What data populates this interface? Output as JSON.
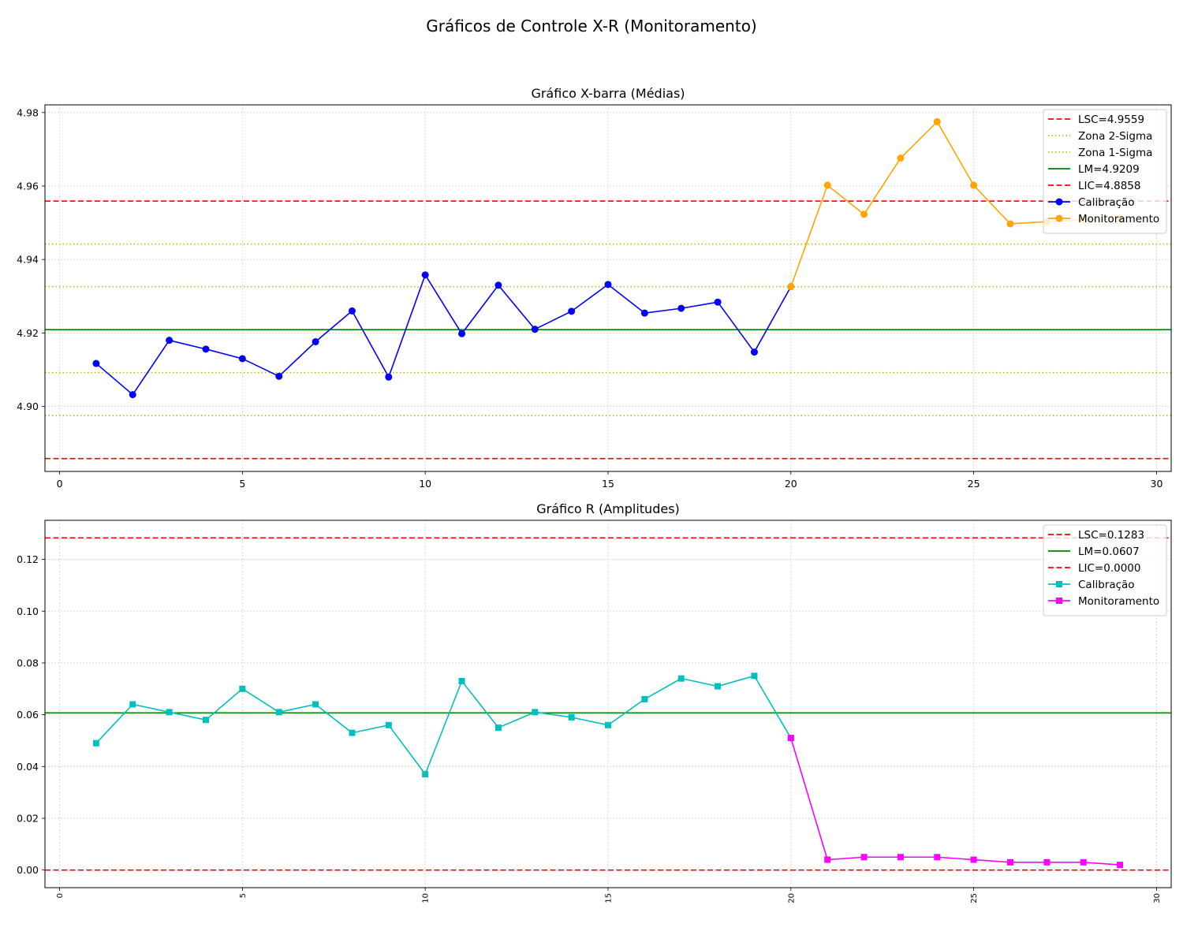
{
  "figure": {
    "suptitle": "Gráficos de Controle X-R (Monitoramento)"
  },
  "chart_data": [
    {
      "type": "line",
      "title": "Gráfico X-barra (Médias)",
      "xlabel": "",
      "ylabel": "",
      "xlim": [
        -0.4,
        30.4
      ],
      "ylim": [
        4.8823,
        4.9821
      ],
      "xticks": [
        0,
        5,
        10,
        15,
        20,
        25,
        30
      ],
      "yticks": [
        4.9,
        4.92,
        4.94,
        4.96,
        4.98
      ],
      "ytick_labels": [
        "4.90",
        "4.92",
        "4.94",
        "4.96",
        "4.98"
      ],
      "grid": true,
      "legend_position": "top-right",
      "control_lines": [
        {
          "label": "LSC=4.9559",
          "value": 4.9559,
          "color": "#ff0000",
          "style": "dashed"
        },
        {
          "label": "Zona 2-Sigma",
          "value": 4.9442,
          "color": "#bfbf00",
          "style": "dotted"
        },
        {
          "label": "Zona 1-Sigma",
          "value": 4.9326,
          "color": "#bfbf00",
          "style": "dotted"
        },
        {
          "label": "LM=4.9209",
          "value": 4.9209,
          "color": "#008000",
          "style": "solid"
        },
        {
          "label": "LIC=4.8858",
          "value": 4.8858,
          "color": "#ff0000",
          "style": "dashed"
        }
      ],
      "unlabeled_lines": [
        {
          "value": 4.9092,
          "color": "#bfbf00",
          "style": "dotted"
        },
        {
          "value": 4.8975,
          "color": "#bfbf00",
          "style": "dotted"
        }
      ],
      "series": [
        {
          "name": "Calibração",
          "color": "#0000ff",
          "marker": "circle",
          "x": [
            1,
            2,
            3,
            4,
            5,
            6,
            7,
            8,
            9,
            10,
            11,
            12,
            13,
            14,
            15,
            16,
            17,
            18,
            19,
            20
          ],
          "y": [
            4.9117,
            4.9032,
            4.918,
            4.9156,
            4.913,
            4.9082,
            4.9176,
            4.926,
            4.908,
            4.9358,
            4.9198,
            4.933,
            4.921,
            4.9259,
            4.9332,
            4.9254,
            4.9267,
            4.9284,
            4.9148,
            4.9326
          ]
        },
        {
          "name": "Monitoramento",
          "color": "#ffa500",
          "marker": "circle",
          "x": [
            20,
            21,
            22,
            23,
            24,
            25,
            26,
            27,
            28,
            29
          ],
          "y": [
            4.9326,
            4.9602,
            4.9523,
            4.9676,
            4.9775,
            4.9602,
            4.9497,
            4.9503,
            4.9508,
            4.9512
          ]
        }
      ]
    },
    {
      "type": "line",
      "title": "Gráfico R (Amplitudes)",
      "xlabel": "",
      "ylabel": "",
      "xlim": [
        -0.4,
        30.4
      ],
      "ylim": [
        -0.0068,
        0.1351
      ],
      "xticks": [
        0,
        5,
        10,
        15,
        20,
        25,
        30
      ],
      "yticks": [
        0.0,
        0.02,
        0.04,
        0.06,
        0.08,
        0.1,
        0.12
      ],
      "ytick_labels": [
        "0.00",
        "0.02",
        "0.04",
        "0.06",
        "0.08",
        "0.10",
        "0.12"
      ],
      "xtick_rotation": 90,
      "grid": true,
      "legend_position": "top-right",
      "control_lines": [
        {
          "label": "LSC=0.1283",
          "value": 0.1283,
          "color": "#ff0000",
          "style": "dashed"
        },
        {
          "label": "LM=0.0607",
          "value": 0.0607,
          "color": "#008000",
          "style": "solid"
        },
        {
          "label": "LIC=0.0000",
          "value": 0.0,
          "color": "#ff0000",
          "style": "dashed"
        }
      ],
      "series": [
        {
          "name": "Calibração",
          "color": "#00bfbf",
          "marker": "square",
          "x": [
            1,
            2,
            3,
            4,
            5,
            6,
            7,
            8,
            9,
            10,
            11,
            12,
            13,
            14,
            15,
            16,
            17,
            18,
            19,
            20
          ],
          "y": [
            0.049,
            0.064,
            0.061,
            0.058,
            0.07,
            0.061,
            0.064,
            0.053,
            0.056,
            0.037,
            0.073,
            0.055,
            0.061,
            0.059,
            0.056,
            0.066,
            0.074,
            0.071,
            0.075,
            0.051
          ]
        },
        {
          "name": "Monitoramento",
          "color": "#ff00ff",
          "marker": "square",
          "x": [
            20,
            21,
            22,
            23,
            24,
            25,
            26,
            27,
            28,
            29
          ],
          "y": [
            0.051,
            0.004,
            0.005,
            0.005,
            0.005,
            0.004,
            0.003,
            0.003,
            0.003,
            0.002
          ]
        }
      ]
    }
  ]
}
